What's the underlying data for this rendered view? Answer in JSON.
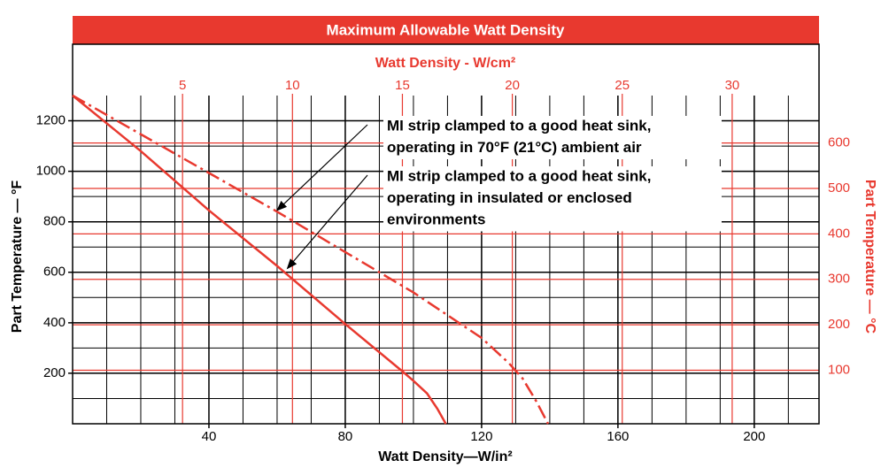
{
  "chart_data": {
    "type": "line",
    "title": "Maximum Allowable Watt Density",
    "x_label": "Watt Density—W/in²",
    "x2_label": "Watt Density - W/cm²",
    "y_label": "Part Temperature — °F",
    "y2_label": "Part Temperature — °C",
    "xlim": [
      0,
      219
    ],
    "xticks": [
      40,
      80,
      120,
      160,
      200
    ],
    "x2lim": [
      0,
      33.95
    ],
    "x2ticks": [
      5,
      10,
      15,
      20,
      25,
      30
    ],
    "ylim": [
      0,
      1300
    ],
    "yticks": [
      200,
      400,
      600,
      800,
      1000,
      1200
    ],
    "y2lim": [
      -17.8,
      704.4
    ],
    "y2ticks": [
      100,
      200,
      300,
      400,
      500,
      600
    ],
    "grid": true,
    "grid_step": {
      "x": 10,
      "y": 100
    },
    "series": [
      {
        "name": "MI strip clamped to a good heat sink, operating in insulated or enclosed environments",
        "color": "#e8392f",
        "style": "solid",
        "x": [
          0,
          20,
          40,
          60,
          80,
          97,
          100,
          104,
          107,
          109.5
        ],
        "values": [
          1300,
          1080,
          845,
          625,
          395,
          205,
          170,
          120,
          60,
          0
        ]
      },
      {
        "name": "MI strip clamped to a good heat sink, operating in 70°F (21°C) ambient air",
        "color": "#e8392f",
        "style": "dashdot",
        "x": [
          0,
          60,
          100,
          120,
          128,
          132,
          136,
          139.5
        ],
        "values": [
          1300,
          840,
          520,
          340,
          240,
          180,
          90,
          0
        ]
      }
    ],
    "annotations": [
      {
        "lines": [
          "MI strip clamped to a good heat sink,",
          "operating in 70°F (21°C) ambient air"
        ],
        "x": 60,
        "y": 845
      },
      {
        "lines": [
          "MI strip clamped to a good heat sink,",
          "operating in insulated or enclosed",
          "environments"
        ],
        "x": 63,
        "y": 615
      }
    ]
  }
}
